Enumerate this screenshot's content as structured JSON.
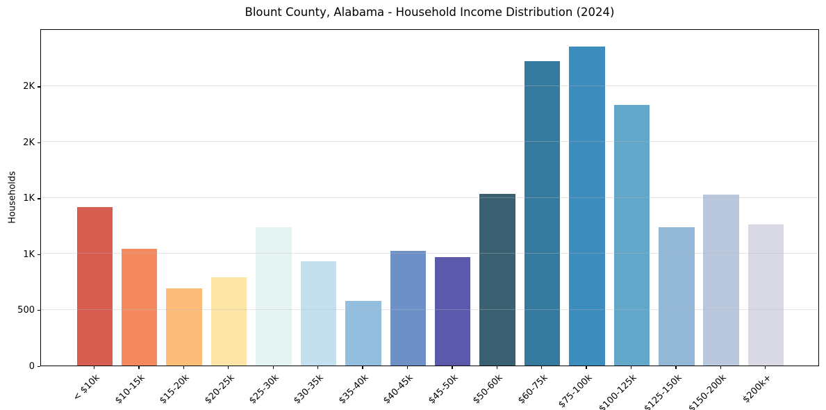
{
  "chart_data": {
    "type": "bar",
    "title": "Blount County, Alabama - Household Income Distribution (2024)",
    "xlabel": "",
    "ylabel": "Households",
    "categories": [
      "< $10k",
      "$10-15k",
      "$15-20k",
      "$20-25k",
      "$25-30k",
      "$30-35k",
      "$35-40k",
      "$40-45k",
      "$45-50k",
      "$50-60k",
      "$60-75k",
      "$75-100k",
      "$100-125k",
      "$125-150k",
      "$150-200k",
      "$200k+"
    ],
    "values": [
      1420,
      1045,
      690,
      790,
      1240,
      935,
      580,
      1025,
      970,
      1535,
      2720,
      2855,
      2330,
      1240,
      1530,
      1260
    ],
    "bar_colors": [
      "#d65d4f",
      "#f4895f",
      "#fcbd7b",
      "#fde5a7",
      "#e6f3f3",
      "#c2e0ed",
      "#94bedd",
      "#6d90c6",
      "#5a59ab",
      "#3a5f70",
      "#35799e",
      "#3c8cbe",
      "#62a6ca",
      "#93b7d7",
      "#b9c8dd",
      "#d8d9e5"
    ],
    "ylim": [
      0,
      3015
    ],
    "yticks": {
      "values": [
        0,
        500,
        1000,
        1500,
        2000,
        2500
      ],
      "labels": [
        "0",
        "500",
        "1K",
        "1K",
        "2K",
        "2K"
      ]
    },
    "xtick_rotation": 45,
    "grid": "horizontal",
    "legend": "none",
    "background_color": "#ffffff",
    "axis_color": "#000000"
  }
}
